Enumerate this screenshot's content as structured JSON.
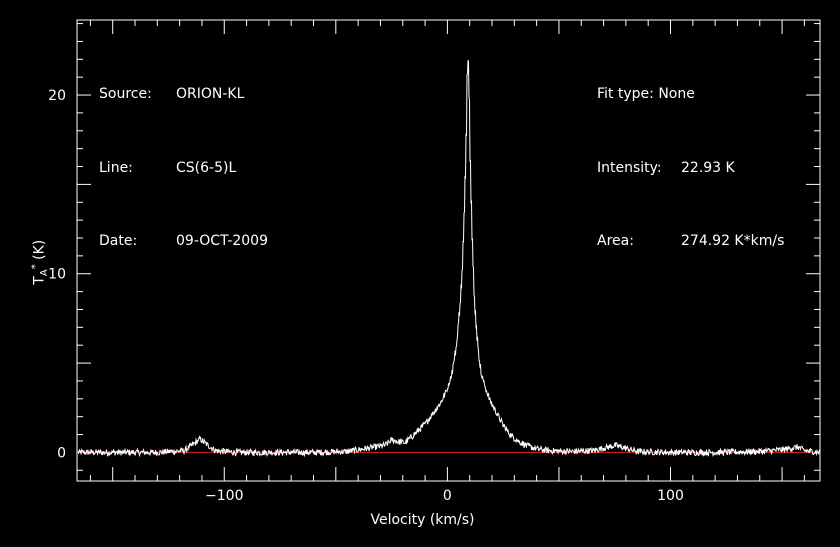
{
  "info_left": {
    "source_label": "Source:",
    "source_value": "ORION-KL",
    "line_label": "Line:",
    "line_value": "CS(6-5)L",
    "date_label": "Date:",
    "date_value": "09-OCT-2009"
  },
  "info_right": {
    "fit_label": "Fit type:",
    "fit_value": "None",
    "intensity_label": "Intensity:",
    "intensity_value": "22.93 K",
    "area_label": "Area:",
    "area_value": "274.92 K*km/s"
  },
  "axes": {
    "xlabel": "Velocity (km/s)",
    "ylabel_main": "T",
    "ylabel_sub": "A",
    "ylabel_sup": "*",
    "ylabel_unit": " (K)"
  },
  "colors": {
    "spectrum": "#ffffff",
    "baseline": "#dd2222",
    "axes": "#ffffff",
    "background": "#000000"
  },
  "chart_data": {
    "type": "line",
    "xlabel": "Velocity (km/s)",
    "ylabel": "T_A* (K)",
    "xlim": [
      -166,
      167
    ],
    "ylim": [
      -1.6,
      24.2
    ],
    "xticks": [
      -100,
      0,
      100
    ],
    "yticks": [
      0,
      10,
      20
    ],
    "grid": false,
    "series": [
      {
        "x": [
          -166,
          -150,
          -130,
          -118,
          -114,
          -111,
          -108,
          -104,
          -95,
          -80,
          -60,
          -45,
          -35,
          -28,
          -25,
          -22,
          -19,
          -15,
          -10,
          -6,
          -3,
          0,
          2,
          4,
          5.5,
          6.5,
          7.5,
          8.3,
          9,
          9.6,
          10.2,
          11,
          12,
          13.5,
          15,
          17,
          19,
          22,
          25,
          28,
          32,
          36,
          40,
          45,
          55,
          65,
          72,
          75,
          78,
          85,
          100,
          120,
          140,
          150,
          157,
          160,
          167
        ],
        "y": [
          0,
          0,
          0,
          0.1,
          0.45,
          0.75,
          0.45,
          0.1,
          0,
          0,
          0,
          0.05,
          0.25,
          0.4,
          0.7,
          0.6,
          0.55,
          1.0,
          1.6,
          2.3,
          2.8,
          3.6,
          4.5,
          6.0,
          8.2,
          10.0,
          13.5,
          17.5,
          22.93,
          20.5,
          16.0,
          12.0,
          8.5,
          6.0,
          4.4,
          3.6,
          2.9,
          2.2,
          1.5,
          1.0,
          0.6,
          0.35,
          0.2,
          0.1,
          0.05,
          0.1,
          0.3,
          0.4,
          0.3,
          0.05,
          0,
          0,
          0.05,
          0.15,
          0.3,
          0.1,
          0
        ]
      },
      {
        "x": [
          -166,
          167
        ],
        "y": [
          0,
          0
        ]
      }
    ]
  }
}
